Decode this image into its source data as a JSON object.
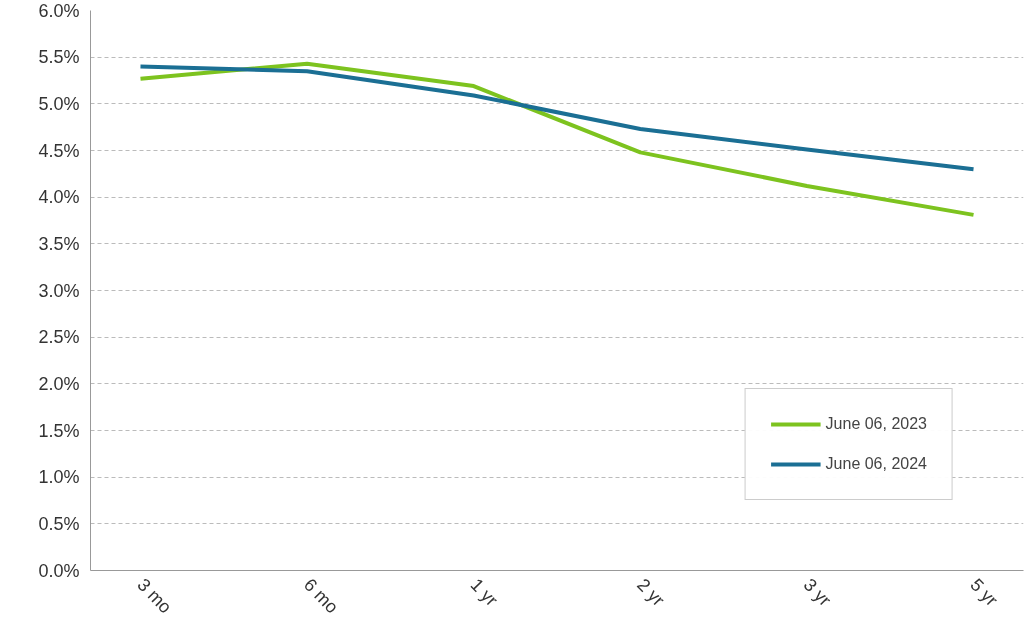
{
  "chart_data": {
    "type": "line",
    "categories": [
      "3 mo",
      "6 mo",
      "1 yr",
      "2 yr",
      "3 yr",
      "5 yr"
    ],
    "series": [
      {
        "name": "June 06, 2023",
        "color": "#7dc31f",
        "values": [
          5.27,
          5.43,
          5.19,
          4.48,
          4.12,
          3.81
        ]
      },
      {
        "name": "June 06, 2024",
        "color": "#1b6f94",
        "values": [
          5.4,
          5.35,
          5.09,
          4.73,
          4.51,
          4.3
        ]
      }
    ],
    "ylim": [
      0,
      6
    ],
    "yticks": [
      {
        "value": 0,
        "label": "0.0%"
      },
      {
        "value": 0.5,
        "label": "0.5%"
      },
      {
        "value": 1,
        "label": "1.0%"
      },
      {
        "value": 1.5,
        "label": "1.5%"
      },
      {
        "value": 2,
        "label": "2.0%"
      },
      {
        "value": 2.5,
        "label": "2.5%"
      },
      {
        "value": 3,
        "label": "3.0%"
      },
      {
        "value": 3.5,
        "label": "3.5%"
      },
      {
        "value": 4,
        "label": "4.0%"
      },
      {
        "value": 4.5,
        "label": "4.5%"
      },
      {
        "value": 5,
        "label": "5.0%"
      },
      {
        "value": 5.5,
        "label": "5.5%"
      },
      {
        "value": 6,
        "label": "6.0%"
      }
    ],
    "grid": "y",
    "legend": "bottom right",
    "marker": "none",
    "line_style": "solid"
  }
}
